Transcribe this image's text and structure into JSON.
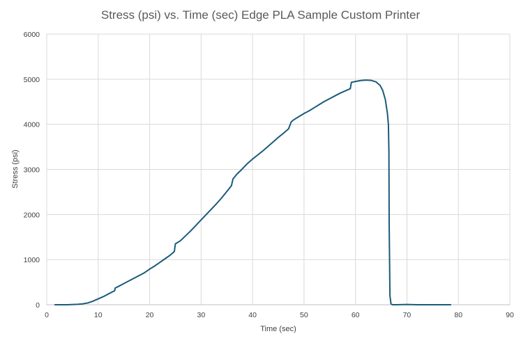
{
  "chart_data": {
    "type": "line",
    "title": "Stress (psi) vs. Time (sec) Edge PLA Sample Custom Printer",
    "xlabel": "Time (sec)",
    "ylabel": "Stress (psi)",
    "xlim": [
      0,
      90
    ],
    "ylim": [
      0,
      6000
    ],
    "x_ticks": [
      "0",
      "10",
      "20",
      "30",
      "40",
      "50",
      "60",
      "70",
      "80",
      "90"
    ],
    "y_ticks": [
      "0",
      "1000",
      "2000",
      "3000",
      "4000",
      "5000",
      "6000"
    ],
    "grid": true,
    "legend": "none",
    "series": [
      {
        "color": "#1b5a7a",
        "x": [
          1.6,
          4,
          6,
          7,
          8,
          9,
          10,
          11,
          12,
          13.2,
          13.3,
          14,
          15,
          16,
          17,
          18,
          19,
          20,
          21,
          22,
          23,
          24,
          24.8,
          25.0,
          26,
          27,
          28,
          29,
          30,
          31,
          32,
          33,
          34,
          35,
          35.9,
          36.2,
          37,
          38,
          39,
          40,
          41,
          42,
          43,
          44,
          45,
          46,
          47.0,
          47.5,
          48,
          49,
          50,
          51,
          52,
          53,
          54,
          55,
          56,
          57,
          58,
          59.0,
          59.2,
          60,
          61,
          62,
          63,
          64,
          64.8,
          65.3,
          65.8,
          66.2,
          66.4,
          66.5,
          66.55,
          66.7,
          66.9,
          67.2,
          68,
          70,
          72,
          74,
          76,
          78.5
        ],
        "y": [
          0,
          0,
          10,
          20,
          40,
          80,
          130,
          180,
          240,
          310,
          370,
          410,
          470,
          530,
          590,
          650,
          710,
          790,
          860,
          940,
          1020,
          1100,
          1180,
          1350,
          1420,
          1530,
          1640,
          1760,
          1880,
          2000,
          2120,
          2240,
          2370,
          2510,
          2640,
          2790,
          2900,
          3010,
          3130,
          3230,
          3320,
          3410,
          3510,
          3610,
          3710,
          3800,
          3900,
          4050,
          4100,
          4170,
          4240,
          4300,
          4370,
          4440,
          4510,
          4570,
          4630,
          4690,
          4740,
          4790,
          4930,
          4950,
          4970,
          4980,
          4975,
          4940,
          4860,
          4750,
          4550,
          4250,
          4000,
          3400,
          1800,
          200,
          20,
          0,
          0,
          5,
          0,
          0,
          0,
          0
        ]
      }
    ]
  }
}
